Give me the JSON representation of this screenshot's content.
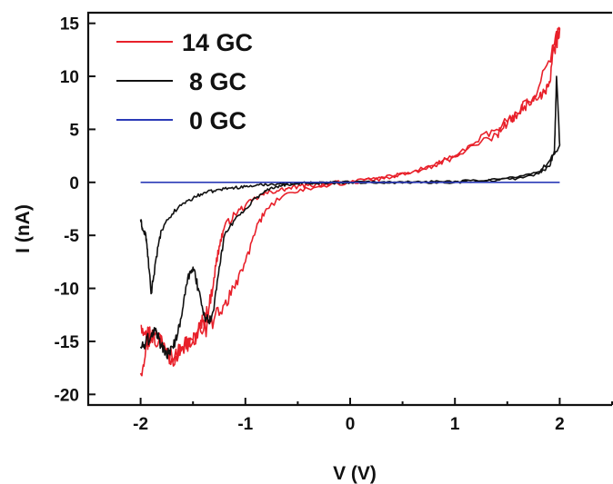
{
  "chart_data": {
    "type": "line",
    "xlabel": "V (V)",
    "ylabel": "I (nA)",
    "xlim": [
      -2.5,
      2.5
    ],
    "ylim": [
      -21,
      16
    ],
    "xticks": [
      -2,
      -1,
      0,
      1,
      2
    ],
    "yticks": [
      15,
      10,
      5,
      0,
      -5,
      -10,
      -15,
      -20
    ],
    "grid": false,
    "legend_position": "top-left",
    "series": [
      {
        "name": "14 GC",
        "color": "#e8202a",
        "noise": 0.6,
        "x": [
          -2.0,
          -1.95,
          -1.9,
          -1.8,
          -1.7,
          -1.6,
          -1.5,
          -1.45,
          -1.4,
          -1.35,
          -1.3,
          -1.25,
          -1.2,
          -1.1,
          -1.0,
          -0.9,
          -0.8,
          -0.7,
          -0.6,
          -0.5,
          -0.4,
          -0.3,
          -0.2,
          -0.1,
          0.0,
          0.2,
          0.4,
          0.6,
          0.8,
          1.0,
          1.2,
          1.4,
          1.6,
          1.8,
          1.95,
          2.0,
          1.95,
          1.9,
          1.85,
          1.8,
          1.7,
          1.6,
          1.5,
          1.4,
          1.2,
          1.0,
          0.8,
          0.6,
          0.4,
          0.2,
          0.0,
          -0.2,
          -0.4,
          -0.6,
          -0.8,
          -0.9,
          -1.0,
          -1.1,
          -1.2,
          -1.3,
          -1.4,
          -1.5,
          -1.6,
          -1.7,
          -1.8,
          -1.9,
          -1.95,
          -2.0
        ],
        "y": [
          -18.0,
          -15.5,
          -14.5,
          -14.5,
          -16.5,
          -15.5,
          -15.0,
          -14.0,
          -13.0,
          -12.0,
          -9.0,
          -6.0,
          -4.2,
          -3.0,
          -2.2,
          -1.5,
          -1.0,
          -0.8,
          -0.6,
          -0.4,
          -0.3,
          -0.2,
          -0.1,
          0.0,
          0.0,
          0.2,
          0.5,
          1.0,
          1.6,
          2.4,
          3.8,
          5.0,
          6.5,
          9.0,
          13.0,
          14.5,
          12.5,
          9.5,
          8.5,
          8.0,
          7.5,
          6.5,
          5.5,
          4.5,
          3.5,
          2.5,
          1.6,
          1.0,
          0.6,
          0.3,
          0.0,
          -0.3,
          -0.6,
          -1.0,
          -2.5,
          -4.5,
          -7.5,
          -10.0,
          -11.5,
          -13.0,
          -14.0,
          -14.8,
          -15.5,
          -16.5,
          -15.5,
          -14.5,
          -14.0,
          -13.5
        ]
      },
      {
        "name": "8 GC",
        "color": "#111111",
        "noise": 0.4,
        "x": [
          -2.0,
          -1.98,
          -1.95,
          -1.93,
          -1.9,
          -1.85,
          -1.8,
          -1.7,
          -1.6,
          -1.5,
          -1.4,
          -1.3,
          -1.2,
          -1.1,
          -1.0,
          -0.9,
          -0.8,
          -0.7,
          -0.6,
          -0.5,
          -0.4,
          -0.3,
          -0.2,
          -0.1,
          0.0,
          0.2,
          0.4,
          0.6,
          0.8,
          1.0,
          1.2,
          1.4,
          1.6,
          1.8,
          1.9,
          1.95,
          1.97,
          2.0,
          1.9,
          1.8,
          1.6,
          1.4,
          1.2,
          1.0,
          0.8,
          0.6,
          0.4,
          0.2,
          0.0,
          -0.2,
          -0.4,
          -0.6,
          -0.7,
          -0.8,
          -0.9,
          -1.0,
          -1.1,
          -1.2,
          -1.25,
          -1.3,
          -1.35,
          -1.4,
          -1.45,
          -1.5,
          -1.55,
          -1.6,
          -1.65,
          -1.7,
          -1.75,
          -1.8,
          -1.85,
          -1.9,
          -1.95,
          -2.0
        ],
        "y": [
          -3.5,
          -4.5,
          -5.0,
          -7.0,
          -10.5,
          -7.0,
          -4.5,
          -3.0,
          -2.0,
          -1.5,
          -1.0,
          -0.8,
          -0.6,
          -0.5,
          -0.4,
          -0.3,
          -0.2,
          -0.15,
          -0.1,
          -0.08,
          -0.05,
          -0.03,
          -0.02,
          0.0,
          0.0,
          0.0,
          0.0,
          0.0,
          0.0,
          0.0,
          0.1,
          0.2,
          0.4,
          0.8,
          1.5,
          3.0,
          10.0,
          3.5,
          2.0,
          1.0,
          0.5,
          0.3,
          0.2,
          0.1,
          0.05,
          0.02,
          0.0,
          0.0,
          0.0,
          -0.05,
          -0.1,
          -0.2,
          -0.4,
          -0.8,
          -1.5,
          -2.5,
          -3.5,
          -5.0,
          -8.0,
          -12.0,
          -13.0,
          -12.5,
          -10.0,
          -8.0,
          -9.0,
          -12.0,
          -14.5,
          -15.5,
          -16.5,
          -15.5,
          -14.0,
          -14.5,
          -15.0,
          -15.5
        ]
      },
      {
        "name": "0 GC",
        "color": "#2b3ab7",
        "noise": 0,
        "x": [
          -2.0,
          2.0
        ],
        "y": [
          0.0,
          0.0
        ]
      }
    ]
  }
}
